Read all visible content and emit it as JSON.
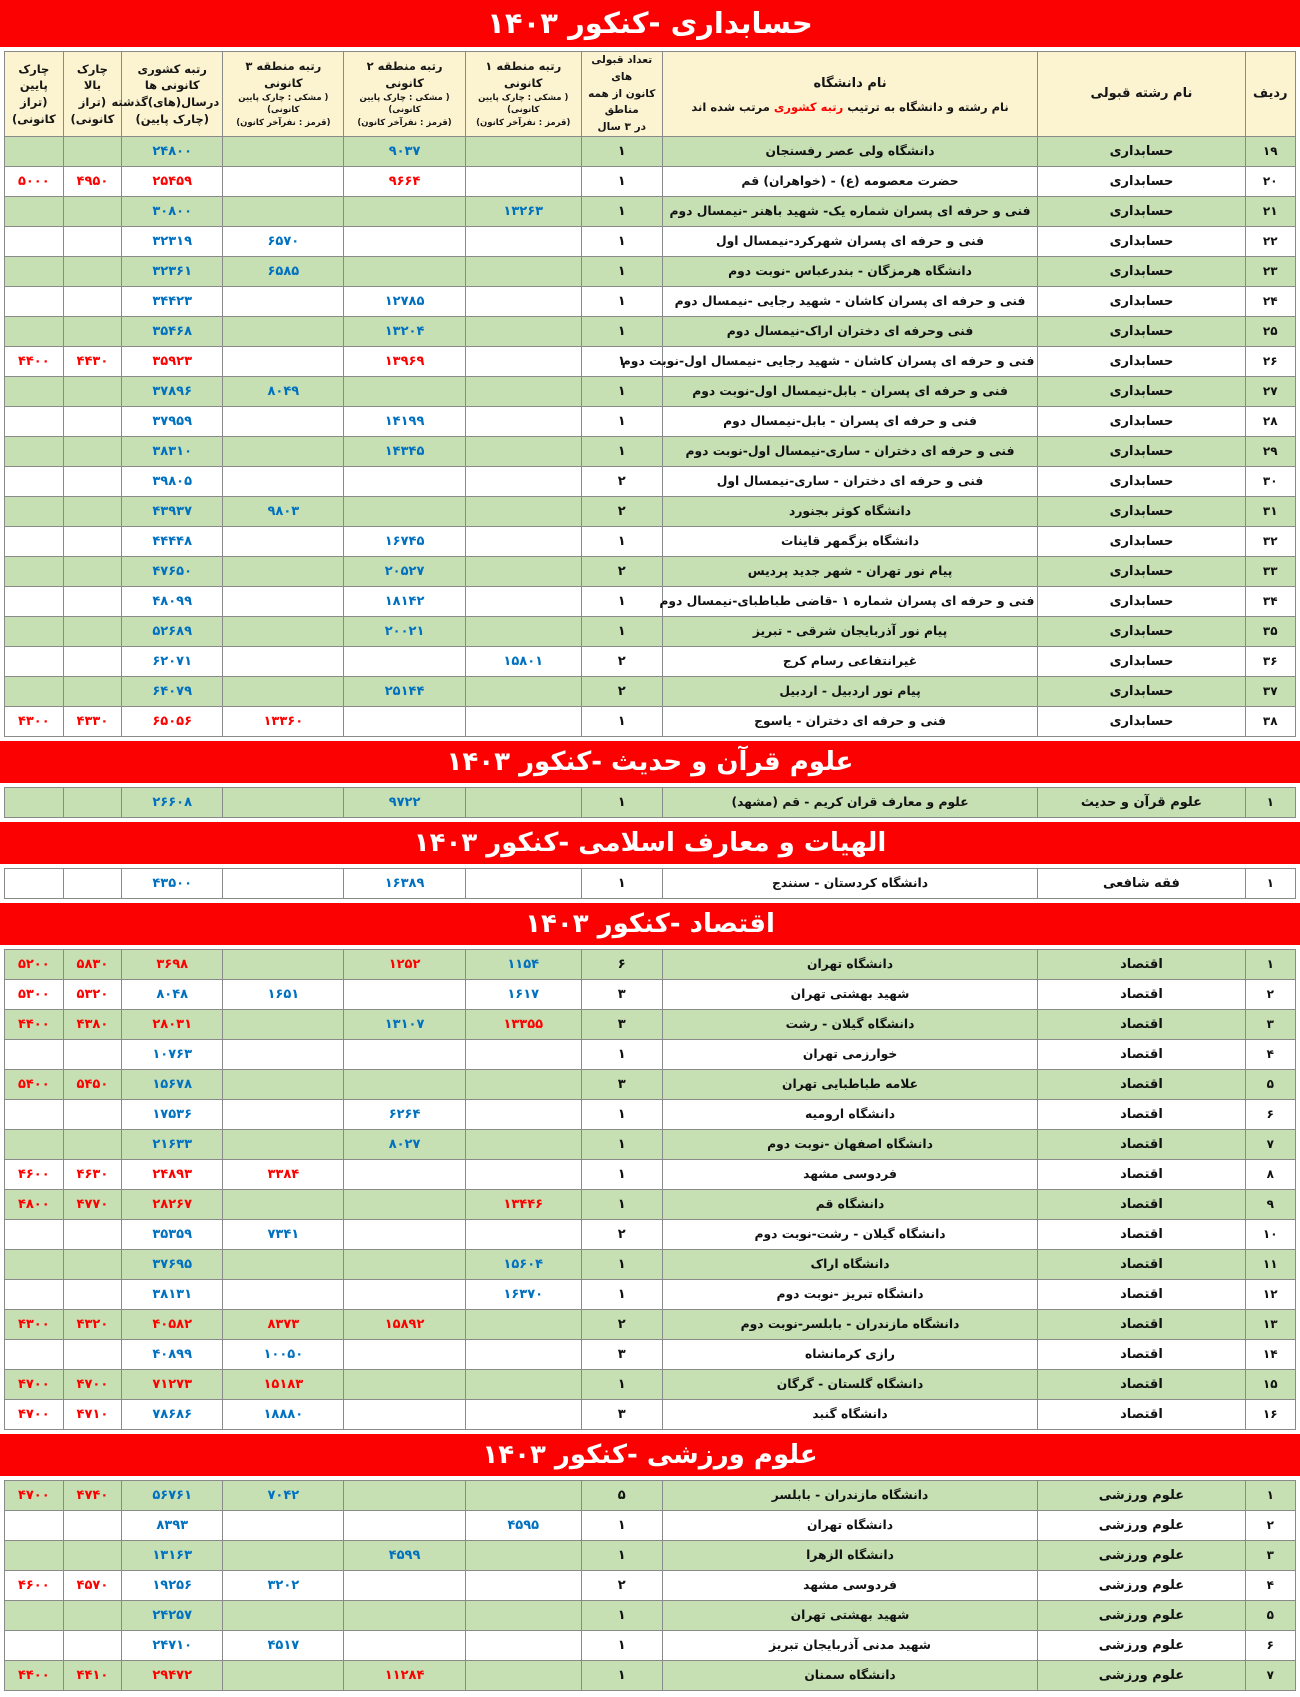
{
  "colors": {
    "band": "#fb0101",
    "green_row": "#c6e0b4",
    "header_bg": "#fcf3d0",
    "blue_value": "#0070c0",
    "red_value": "#fe0000"
  },
  "header": {
    "row_no": "ردیف",
    "major": "نام رشته قبولی",
    "university_title": "نام دانشگاه",
    "university_note_pre": "نام رشته و دانشگاه به ترتیب ",
    "university_note_highlight": "رتبه کشوری",
    "university_note_post": " مرتب شده اند",
    "count_lines": [
      "تعداد قبولی های",
      "کانون از همه مناطق",
      "در ۳ سال"
    ],
    "region1_title": "رتبه منطقه ۱ کانونی",
    "region2_title": "رتبه منطقه ۲ کانونی",
    "region3_title": "رتبه منطقه ۳ کانونی",
    "region_sub_black": "( مشکی : چارک پایین کانونی)",
    "region_sub_red": "(قرمز : نفرآخر کانون)",
    "national_lines": [
      "رتبه کشوری کانونی ها",
      "درسال(های)گذشته",
      "(چارک پایین)"
    ],
    "upper_quartile_lines": [
      "چارک بالا",
      "(تراز کانونی)"
    ],
    "lower_quartile_lines": [
      "چارک پایین",
      "(تراز کانونی)"
    ]
  },
  "sections": [
    {
      "title": "حسابداری -کنکور ۱۴۰۳",
      "rows": [
        {
          "no": "۱۹",
          "g": 1,
          "major": "حسابداری",
          "uni": "دانشگاه ولی عصر رفسنجان",
          "cnt": "۱",
          "r2": "۹۰۳۷",
          "r2c": "b",
          "nat": "۲۴۸۰۰",
          "natc": "b"
        },
        {
          "no": "۲۰",
          "g": 0,
          "major": "حسابداری",
          "uni": "حضرت معصومه (ع) - (خواهران) قم",
          "cnt": "۱",
          "r2": "۹۶۶۴",
          "r2c": "r",
          "nat": "۲۵۴۵۹",
          "natc": "r",
          "qt": "۴۹۵۰",
          "qtc": "r",
          "qb": "۵۰۰۰",
          "qbc": "r"
        },
        {
          "no": "۲۱",
          "g": 1,
          "major": "حسابداری",
          "uni": "فنی و حرفه ای پسران شماره یک- شهید باهنر -نیمسال دوم",
          "cnt": "۱",
          "r1": "۱۳۲۶۳",
          "r1c": "b",
          "nat": "۳۰۸۰۰",
          "natc": "b"
        },
        {
          "no": "۲۲",
          "g": 0,
          "major": "حسابداری",
          "uni": "فنی و حرفه ای پسران شهرکرد-نیمسال اول",
          "cnt": "۱",
          "r3": "۶۵۷۰",
          "r3c": "b",
          "nat": "۳۲۳۱۹",
          "natc": "b"
        },
        {
          "no": "۲۳",
          "g": 1,
          "major": "حسابداری",
          "uni": "دانشگاه هرمزگان - بندرعباس -نوبت دوم",
          "cnt": "۱",
          "r3": "۶۵۸۵",
          "r3c": "b",
          "nat": "۳۲۳۶۱",
          "natc": "b"
        },
        {
          "no": "۲۴",
          "g": 0,
          "major": "حسابداری",
          "uni": "فنی و حرفه ای پسران کاشان - شهید رجایی -نیمسال دوم",
          "cnt": "۱",
          "r2": "۱۲۷۸۵",
          "r2c": "b",
          "nat": "۳۴۴۲۳",
          "natc": "b"
        },
        {
          "no": "۲۵",
          "g": 1,
          "major": "حسابداری",
          "uni": "فنی وحرفه ای دختران اراک-نیمسال دوم",
          "cnt": "۱",
          "r2": "۱۳۲۰۴",
          "r2c": "b",
          "nat": "۳۵۴۶۸",
          "natc": "b"
        },
        {
          "no": "۲۶",
          "g": 0,
          "major": "حسابداری",
          "uni": "فنی و حرفه ای پسران کاشان - شهید رجایی -نیمسال اول-نوبت دوم",
          "cnt": "۱",
          "r2": "۱۳۹۶۹",
          "r2c": "r",
          "nat": "۳۵۹۲۳",
          "natc": "r",
          "qt": "۴۴۳۰",
          "qtc": "r",
          "qb": "۴۴۰۰",
          "qbc": "r"
        },
        {
          "no": "۲۷",
          "g": 1,
          "major": "حسابداری",
          "uni": "فنی و حرفه ای پسران  - بابل-نیمسال اول-نوبت دوم",
          "cnt": "۱",
          "r3": "۸۰۴۹",
          "r3c": "b",
          "nat": "۳۷۸۹۶",
          "natc": "b"
        },
        {
          "no": "۲۸",
          "g": 0,
          "major": "حسابداری",
          "uni": "فنی و حرفه ای پسران  - بابل-نیمسال دوم",
          "cnt": "۱",
          "r2": "۱۴۱۹۹",
          "r2c": "b",
          "nat": "۳۷۹۵۹",
          "natc": "b"
        },
        {
          "no": "۲۹",
          "g": 1,
          "major": "حسابداری",
          "uni": "فنی و حرفه ای دختران  - ساری-نیمسال اول-نوبت دوم",
          "cnt": "۱",
          "r2": "۱۴۳۴۵",
          "r2c": "b",
          "nat": "۳۸۳۱۰",
          "natc": "b"
        },
        {
          "no": "۳۰",
          "g": 0,
          "major": "حسابداری",
          "uni": "فنی و حرفه ای دختران  - ساری-نیمسال اول",
          "cnt": "۲",
          "nat": "۳۹۸۰۵",
          "natc": "b"
        },
        {
          "no": "۳۱",
          "g": 1,
          "major": "حسابداری",
          "uni": "دانشگاه کوثر بجنورد",
          "cnt": "۲",
          "r3": "۹۸۰۳",
          "r3c": "b",
          "nat": "۴۳۹۳۷",
          "natc": "b"
        },
        {
          "no": "۳۲",
          "g": 0,
          "major": "حسابداری",
          "uni": "دانشگاه بزگمهر قاینات",
          "cnt": "۱",
          "r2": "۱۶۷۴۵",
          "r2c": "b",
          "nat": "۴۴۴۴۸",
          "natc": "b"
        },
        {
          "no": "۳۳",
          "g": 1,
          "major": "حسابداری",
          "uni": "پیام نور تهران - شهر جدید پردیس",
          "cnt": "۲",
          "r2": "۲۰۵۲۷",
          "r2c": "b",
          "nat": "۴۷۶۵۰",
          "natc": "b"
        },
        {
          "no": "۳۴",
          "g": 0,
          "major": "حسابداری",
          "uni": "فنی و حرفه ای پسران شماره ۱ -قاضی طباطبای-نیمسال دوم",
          "cnt": "۱",
          "r2": "۱۸۱۴۲",
          "r2c": "b",
          "nat": "۴۸۰۹۹",
          "natc": "b"
        },
        {
          "no": "۳۵",
          "g": 1,
          "major": "حسابداری",
          "uni": "پیام نور آذربایجان شرقی - تبریز",
          "cnt": "۱",
          "r2": "۲۰۰۲۱",
          "r2c": "b",
          "nat": "۵۲۶۸۹",
          "natc": "b"
        },
        {
          "no": "۳۶",
          "g": 0,
          "major": "حسابداری",
          "uni": "غیرانتفاعی رسام کرج",
          "cnt": "۲",
          "r1": "۱۵۸۰۱",
          "r1c": "b",
          "nat": "۶۲۰۷۱",
          "natc": "b"
        },
        {
          "no": "۳۷",
          "g": 1,
          "major": "حسابداری",
          "uni": "پیام نور اردبیل - اردبیل",
          "cnt": "۲",
          "r2": "۲۵۱۴۴",
          "r2c": "b",
          "nat": "۶۴۰۷۹",
          "natc": "b"
        },
        {
          "no": "۳۸",
          "g": 0,
          "major": "حسابداری",
          "uni": "فنی و حرفه ای دختران  - یاسوج",
          "cnt": "۱",
          "r3": "۱۳۳۶۰",
          "r3c": "r",
          "nat": "۶۵۰۵۶",
          "natc": "r",
          "qt": "۴۳۳۰",
          "qtc": "r",
          "qb": "۴۳۰۰",
          "qbc": "r"
        }
      ]
    },
    {
      "title": "علوم قرآن و حدیث -کنکور ۱۴۰۳",
      "rows": [
        {
          "no": "۱",
          "g": 1,
          "major": "علوم قرآن و حدیث",
          "uni": "علوم و معارف قران کریم - قم (مشهد)",
          "cnt": "۱",
          "r2": "۹۷۲۲",
          "r2c": "b",
          "nat": "۲۶۶۰۸",
          "natc": "b"
        }
      ]
    },
    {
      "title": "الهیات و معارف اسلامی -کنکور ۱۴۰۳",
      "rows": [
        {
          "no": "۱",
          "g": 0,
          "major": "فقه شافعی",
          "uni": "دانشگاه کردستان - سنندج",
          "cnt": "۱",
          "r2": "۱۶۳۸۹",
          "r2c": "b",
          "nat": "۴۳۵۰۰",
          "natc": "b"
        }
      ]
    },
    {
      "title": "اقتصاد -کنکور ۱۴۰۳",
      "rows": [
        {
          "no": "۱",
          "g": 1,
          "major": "اقتصاد",
          "uni": "دانشگاه تهران",
          "cnt": "۶",
          "r1": "۱۱۵۴",
          "r1c": "b",
          "r2": "۱۲۵۲",
          "r2c": "r",
          "nat": "۳۶۹۸",
          "natc": "r",
          "qt": "۵۸۳۰",
          "qtc": "r",
          "qb": "۵۲۰۰",
          "qbc": "r"
        },
        {
          "no": "۲",
          "g": 0,
          "major": "اقتصاد",
          "uni": "شهید بهشتی تهران",
          "cnt": "۳",
          "r1": "۱۶۱۷",
          "r1c": "b",
          "r3": "۱۶۵۱",
          "r3c": "b",
          "nat": "۸۰۴۸",
          "natc": "b",
          "qt": "۵۳۲۰",
          "qtc": "r",
          "qb": "۵۳۰۰",
          "qbc": "r"
        },
        {
          "no": "۳",
          "g": 1,
          "major": "اقتصاد",
          "uni": "دانشگاه گیلان - رشت",
          "cnt": "۳",
          "r1": "۱۳۳۵۵",
          "r1c": "r",
          "r2": "۱۳۱۰۷",
          "r2c": "b",
          "nat": "۲۸۰۳۱",
          "natc": "r",
          "qt": "۴۳۸۰",
          "qtc": "r",
          "qb": "۴۴۰۰",
          "qbc": "r"
        },
        {
          "no": "۴",
          "g": 0,
          "major": "اقتصاد",
          "uni": "خوارزمی تهران",
          "cnt": "۱",
          "nat": "۱۰۷۶۳",
          "natc": "b"
        },
        {
          "no": "۵",
          "g": 1,
          "major": "اقتصاد",
          "uni": "علامه طباطبایی تهران",
          "cnt": "۳",
          "nat": "۱۵۶۷۸",
          "natc": "b",
          "qt": "۵۴۵۰",
          "qtc": "r",
          "qb": "۵۴۰۰",
          "qbc": "r"
        },
        {
          "no": "۶",
          "g": 0,
          "major": "اقتصاد",
          "uni": "دانشگاه ارومیه",
          "cnt": "۱",
          "r2": "۶۲۶۴",
          "r2c": "b",
          "nat": "۱۷۵۳۶",
          "natc": "b"
        },
        {
          "no": "۷",
          "g": 1,
          "major": "اقتصاد",
          "uni": "دانشگاه اصفهان -نوبت دوم",
          "cnt": "۱",
          "r2": "۸۰۲۷",
          "r2c": "b",
          "nat": "۲۱۶۳۳",
          "natc": "b"
        },
        {
          "no": "۸",
          "g": 0,
          "major": "اقتصاد",
          "uni": "فردوسی مشهد",
          "cnt": "۱",
          "r3": "۳۳۸۴",
          "r3c": "r",
          "nat": "۲۴۸۹۳",
          "natc": "r",
          "qt": "۴۶۳۰",
          "qtc": "r",
          "qb": "۴۶۰۰",
          "qbc": "r"
        },
        {
          "no": "۹",
          "g": 1,
          "major": "اقتصاد",
          "uni": "دانشگاه قم",
          "cnt": "۱",
          "r1": "۱۳۴۴۶",
          "r1c": "r",
          "nat": "۲۸۲۶۷",
          "natc": "r",
          "qt": "۴۷۷۰",
          "qtc": "r",
          "qb": "۴۸۰۰",
          "qbc": "r"
        },
        {
          "no": "۱۰",
          "g": 0,
          "major": "اقتصاد",
          "uni": "دانشگاه گیلان  - رشت-نوبت دوم",
          "cnt": "۲",
          "r3": "۷۳۴۱",
          "r3c": "b",
          "nat": "۳۵۳۵۹",
          "natc": "b"
        },
        {
          "no": "۱۱",
          "g": 1,
          "major": "اقتصاد",
          "uni": "دانشگاه اراک",
          "cnt": "۱",
          "r1": "۱۵۶۰۴",
          "r1c": "b",
          "nat": "۳۷۶۹۵",
          "natc": "b"
        },
        {
          "no": "۱۲",
          "g": 0,
          "major": "اقتصاد",
          "uni": "دانشگاه تبریز -نوبت دوم",
          "cnt": "۱",
          "r1": "۱۶۳۷۰",
          "r1c": "b",
          "nat": "۳۸۱۳۱",
          "natc": "b"
        },
        {
          "no": "۱۳",
          "g": 1,
          "major": "اقتصاد",
          "uni": "دانشگاه مازندران - بابلسر-نوبت دوم",
          "cnt": "۲",
          "r2": "۱۵۸۹۲",
          "r2c": "r",
          "r3": "۸۳۷۳",
          "r3c": "r",
          "nat": "۴۰۵۸۲",
          "natc": "r",
          "qt": "۴۳۲۰",
          "qtc": "r",
          "qb": "۴۳۰۰",
          "qbc": "r"
        },
        {
          "no": "۱۴",
          "g": 0,
          "major": "اقتصاد",
          "uni": "رازی کرمانشاه",
          "cnt": "۳",
          "r3": "۱۰۰۵۰",
          "r3c": "b",
          "nat": "۴۰۸۹۹",
          "natc": "b"
        },
        {
          "no": "۱۵",
          "g": 1,
          "major": "اقتصاد",
          "uni": "دانشگاه گلستان - گرگان",
          "cnt": "۱",
          "r3": "۱۵۱۸۳",
          "r3c": "r",
          "nat": "۷۱۲۷۳",
          "natc": "r",
          "qt": "۴۷۰۰",
          "qtc": "r",
          "qb": "۴۷۰۰",
          "qbc": "r"
        },
        {
          "no": "۱۶",
          "g": 0,
          "major": "اقتصاد",
          "uni": "دانشگاه گنبد",
          "cnt": "۳",
          "r3": "۱۸۸۸۰",
          "r3c": "b",
          "nat": "۷۸۶۸۶",
          "natc": "b",
          "qt": "۴۷۱۰",
          "qtc": "r",
          "qb": "۴۷۰۰",
          "qbc": "r"
        }
      ]
    },
    {
      "title": "علوم ورزشی -کنکور ۱۴۰۳",
      "rows": [
        {
          "no": "۱",
          "g": 1,
          "major": "علوم ورزشی",
          "uni": "دانشگاه مازندران - بابلسر",
          "cnt": "۵",
          "r3": "۷۰۴۲",
          "r3c": "b",
          "nat": "۵۶۷۶۱",
          "natc": "b",
          "qt": "۴۷۴۰",
          "qtc": "r",
          "qb": "۴۷۰۰",
          "qbc": "r"
        },
        {
          "no": "۲",
          "g": 0,
          "major": "علوم ورزشی",
          "uni": "دانشگاه تهران",
          "cnt": "۱",
          "r1": "۴۵۹۵",
          "r1c": "b",
          "nat": "۸۳۹۳",
          "natc": "b"
        },
        {
          "no": "۳",
          "g": 1,
          "major": "علوم ورزشی",
          "uni": "دانشگاه الزهرا",
          "cnt": "۱",
          "r2": "۴۵۹۹",
          "r2c": "b",
          "nat": "۱۳۱۶۳",
          "natc": "b"
        },
        {
          "no": "۴",
          "g": 0,
          "major": "علوم ورزشی",
          "uni": "فردوسی مشهد",
          "cnt": "۲",
          "r3": "۳۲۰۲",
          "r3c": "b",
          "nat": "۱۹۲۵۶",
          "natc": "b",
          "qt": "۴۵۷۰",
          "qtc": "r",
          "qb": "۴۶۰۰",
          "qbc": "r"
        },
        {
          "no": "۵",
          "g": 1,
          "major": "علوم ورزشی",
          "uni": "شهید بهشتی تهران",
          "cnt": "۱",
          "nat": "۲۴۲۵۷",
          "natc": "b"
        },
        {
          "no": "۶",
          "g": 0,
          "major": "علوم ورزشی",
          "uni": "شهید مدنی آذربایجان تبریز",
          "cnt": "۱",
          "r3": "۴۵۱۷",
          "r3c": "b",
          "nat": "۲۴۷۱۰",
          "natc": "b"
        },
        {
          "no": "۷",
          "g": 1,
          "major": "علوم ورزشی",
          "uni": "دانشگاه سمنان",
          "cnt": "۱",
          "r2": "۱۱۲۸۴",
          "r2c": "r",
          "nat": "۲۹۴۷۲",
          "natc": "r",
          "qt": "۴۴۱۰",
          "qtc": "r",
          "qb": "۴۴۰۰",
          "qbc": "r"
        }
      ]
    }
  ]
}
